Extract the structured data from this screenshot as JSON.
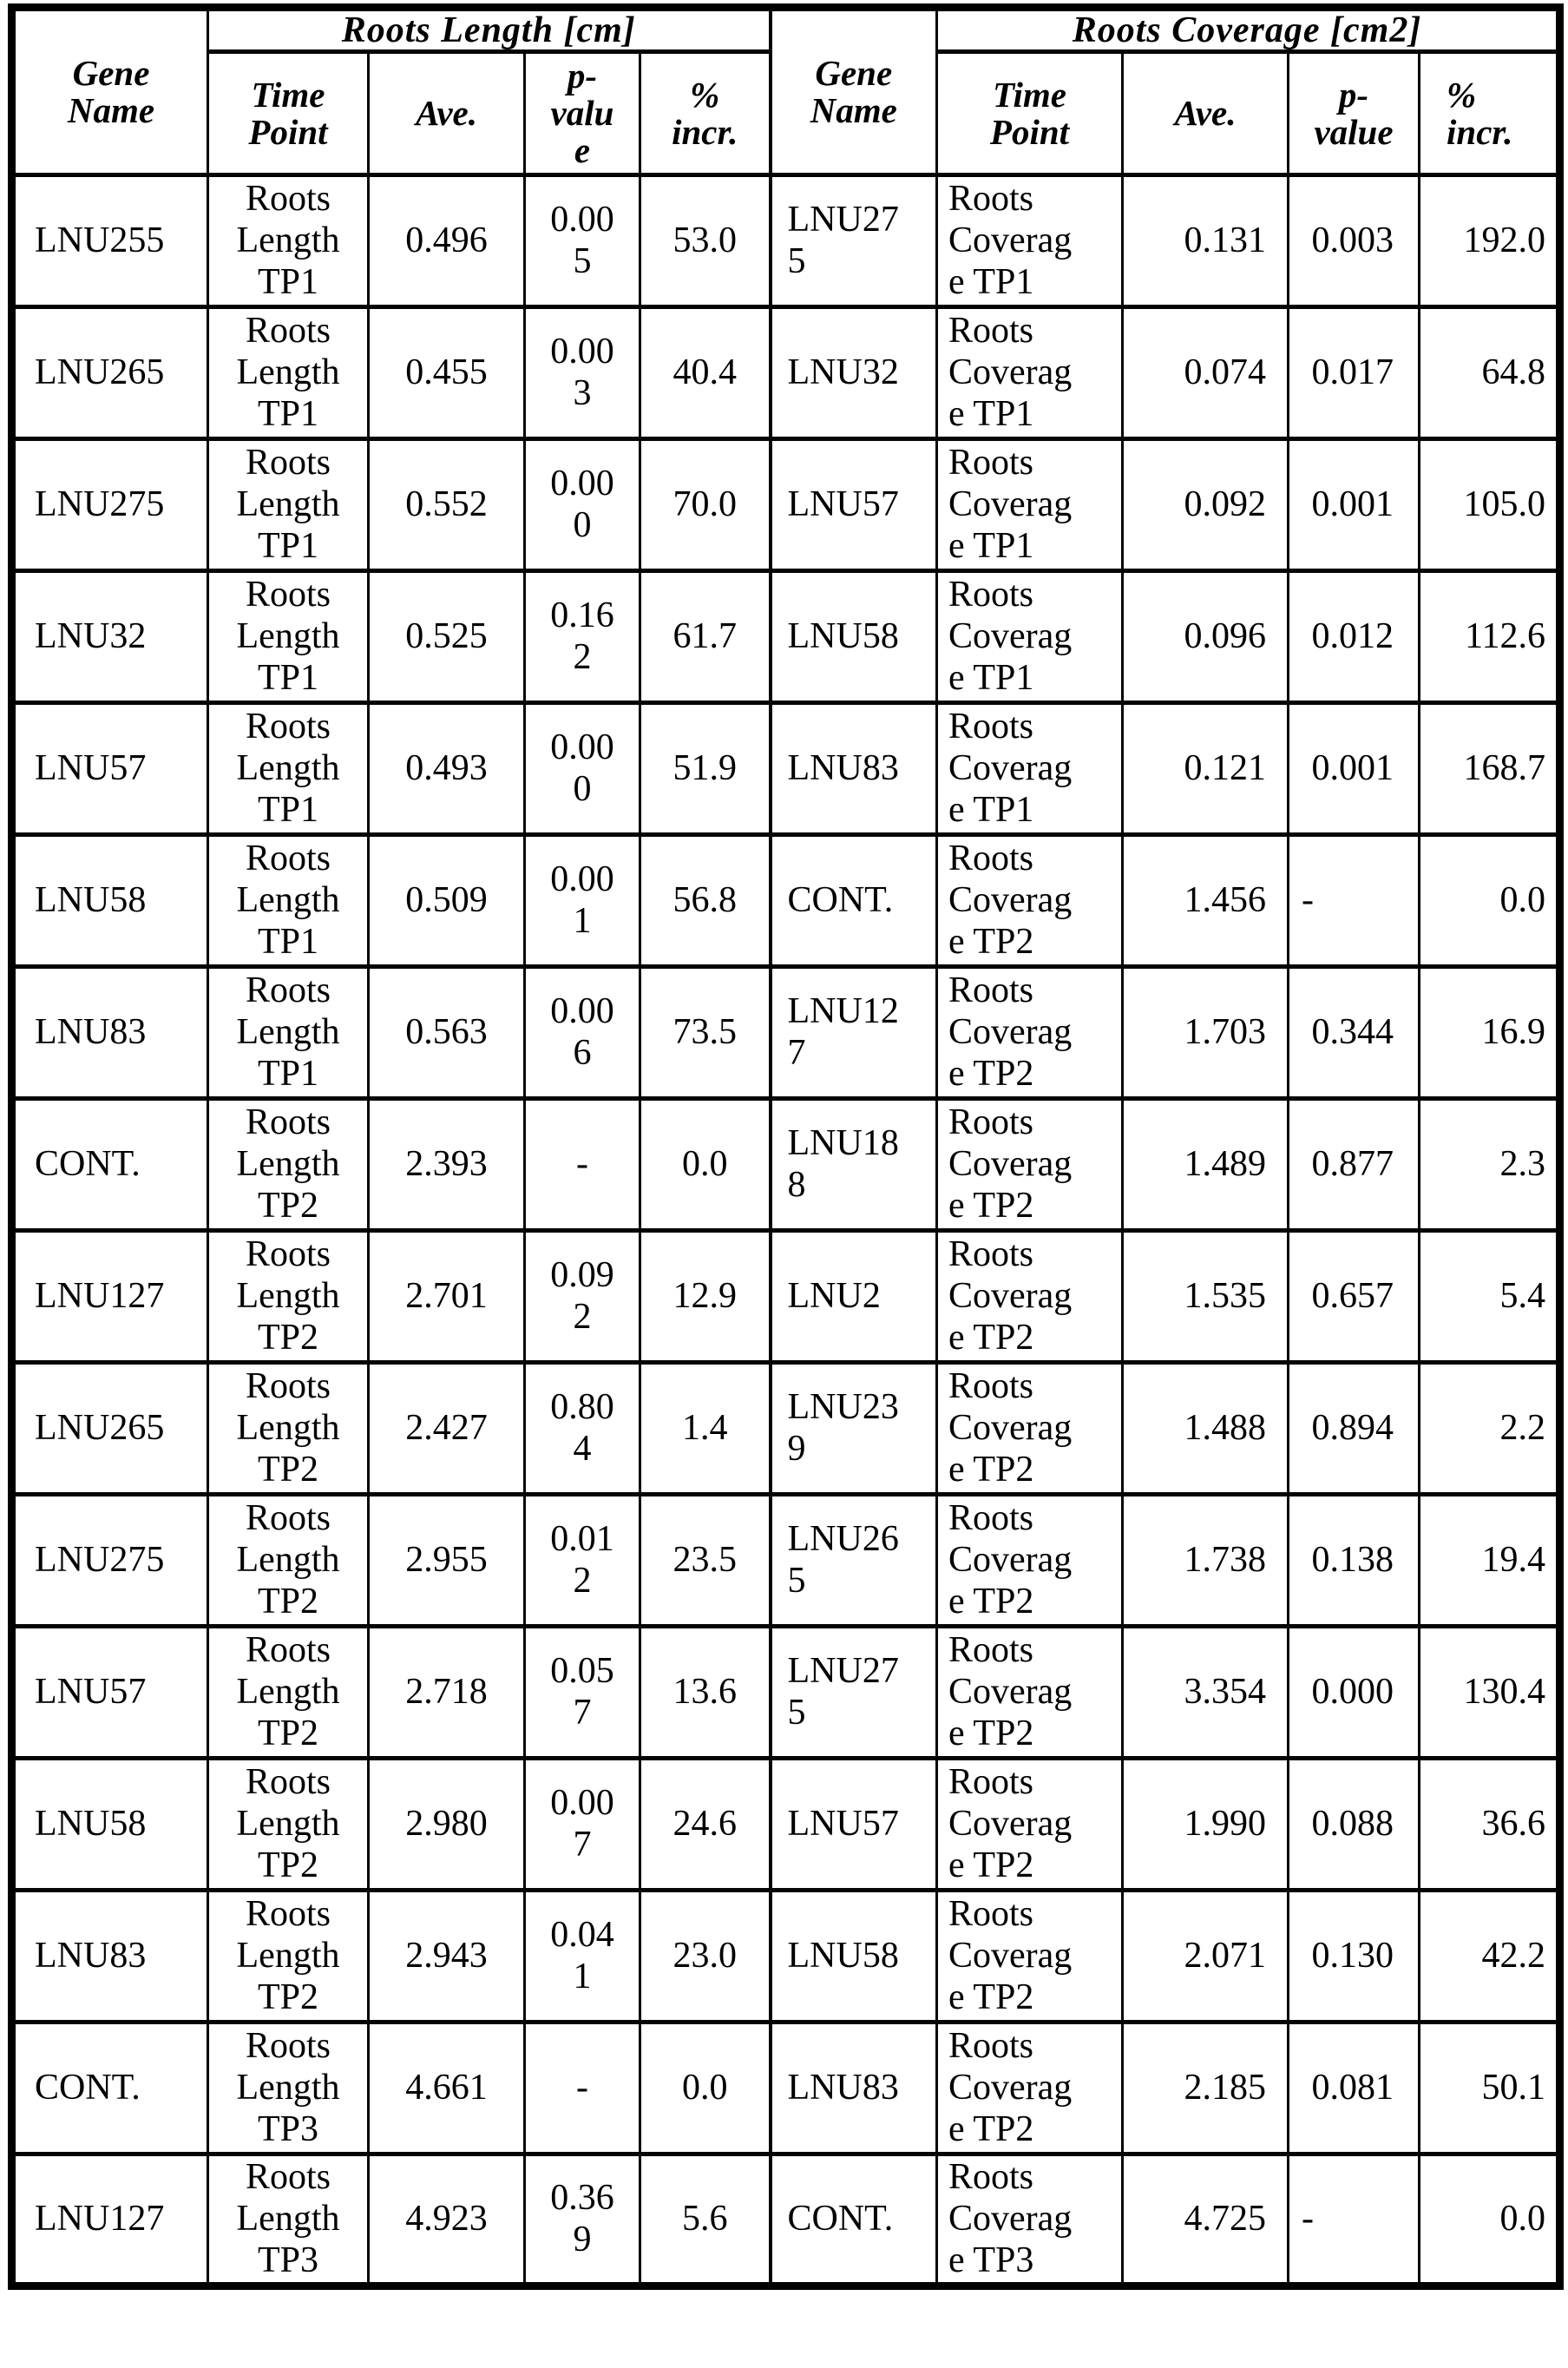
{
  "table": {
    "groups": {
      "left": "Roots Length [cm]",
      "right": "Roots Coverage [cm2]"
    },
    "headers": {
      "left": {
        "gene": "Gene\nName",
        "time": "Time\nPoint",
        "ave": "Ave.",
        "p": "p-\nvalu\ne",
        "incr": "%\nincr."
      },
      "right": {
        "gene": "Gene\nName",
        "time": "Time\nPoint",
        "ave": "Ave.",
        "p": "p-\nvalue",
        "incr": "%\nincr."
      }
    },
    "rows": [
      {
        "left": [
          "LNU255",
          "Roots\nLength\nTP1",
          "0.496",
          "0.00\n5",
          "53.0"
        ],
        "right": [
          "LNU27\n5",
          "Roots\nCoverag\ne TP1",
          "0.131",
          "0.003",
          "192.0"
        ]
      },
      {
        "left": [
          "LNU265",
          "Roots\nLength\nTP1",
          "0.455",
          "0.00\n3",
          "40.4"
        ],
        "right": [
          "LNU32",
          "Roots\nCoverag\ne TP1",
          "0.074",
          "0.017",
          "64.8"
        ]
      },
      {
        "left": [
          "LNU275",
          "Roots\nLength\nTP1",
          "0.552",
          "0.00\n0",
          "70.0"
        ],
        "right": [
          "LNU57",
          "Roots\nCoverag\ne TP1",
          "0.092",
          "0.001",
          "105.0"
        ]
      },
      {
        "left": [
          "LNU32",
          "Roots\nLength\nTP1",
          "0.525",
          "0.16\n2",
          "61.7"
        ],
        "right": [
          "LNU58",
          "Roots\nCoverag\ne TP1",
          "0.096",
          "0.012",
          "112.6"
        ]
      },
      {
        "left": [
          "LNU57",
          "Roots\nLength\nTP1",
          "0.493",
          "0.00\n0",
          "51.9"
        ],
        "right": [
          "LNU83",
          "Roots\nCoverag\ne TP1",
          "0.121",
          "0.001",
          "168.7"
        ]
      },
      {
        "left": [
          "LNU58",
          "Roots\nLength\nTP1",
          "0.509",
          "0.00\n1",
          "56.8"
        ],
        "right": [
          "CONT.",
          "Roots\nCoverag\ne TP2",
          "1.456",
          "-",
          "0.0"
        ]
      },
      {
        "left": [
          "LNU83",
          "Roots\nLength\nTP1",
          "0.563",
          "0.00\n6",
          "73.5"
        ],
        "right": [
          "LNU12\n7",
          "Roots\nCoverag\ne TP2",
          "1.703",
          "0.344",
          "16.9"
        ]
      },
      {
        "left": [
          "CONT.",
          "Roots\nLength\nTP2",
          "2.393",
          "-",
          "0.0"
        ],
        "right": [
          "LNU18\n8",
          "Roots\nCoverag\ne TP2",
          "1.489",
          "0.877",
          "2.3"
        ]
      },
      {
        "left": [
          "LNU127",
          "Roots\nLength\nTP2",
          "2.701",
          "0.09\n2",
          "12.9"
        ],
        "right": [
          "LNU2",
          "Roots\nCoverag\ne TP2",
          "1.535",
          "0.657",
          "5.4"
        ]
      },
      {
        "left": [
          "LNU265",
          "Roots\nLength\nTP2",
          "2.427",
          "0.80\n4",
          "1.4"
        ],
        "right": [
          "LNU23\n9",
          "Roots\nCoverag\ne TP2",
          "1.488",
          "0.894",
          "2.2"
        ]
      },
      {
        "left": [
          "LNU275",
          "Roots\nLength\nTP2",
          "2.955",
          "0.01\n2",
          "23.5"
        ],
        "right": [
          "LNU26\n5",
          "Roots\nCoverag\ne TP2",
          "1.738",
          "0.138",
          "19.4"
        ]
      },
      {
        "left": [
          "LNU57",
          "Roots\nLength\nTP2",
          "2.718",
          "0.05\n7",
          "13.6"
        ],
        "right": [
          "LNU27\n5",
          "Roots\nCoverag\ne TP2",
          "3.354",
          "0.000",
          "130.4"
        ]
      },
      {
        "left": [
          "LNU58",
          "Roots\nLength\nTP2",
          "2.980",
          "0.00\n7",
          "24.6"
        ],
        "right": [
          "LNU57",
          "Roots\nCoverag\ne TP2",
          "1.990",
          "0.088",
          "36.6"
        ]
      },
      {
        "left": [
          "LNU83",
          "Roots\nLength\nTP2",
          "2.943",
          "0.04\n1",
          "23.0"
        ],
        "right": [
          "LNU58",
          "Roots\nCoverag\ne TP2",
          "2.071",
          "0.130",
          "42.2"
        ]
      },
      {
        "left": [
          "CONT.",
          "Roots\nLength\nTP3",
          "4.661",
          "-",
          "0.0"
        ],
        "right": [
          "LNU83",
          "Roots\nCoverag\ne TP2",
          "2.185",
          "0.081",
          "50.1"
        ]
      },
      {
        "left": [
          "LNU127",
          "Roots\nLength\nTP3",
          "4.923",
          "0.36\n9",
          "5.6"
        ],
        "right": [
          "CONT.",
          "Roots\nCoverag\ne TP3",
          "4.725",
          "-",
          "0.0"
        ]
      }
    ]
  }
}
